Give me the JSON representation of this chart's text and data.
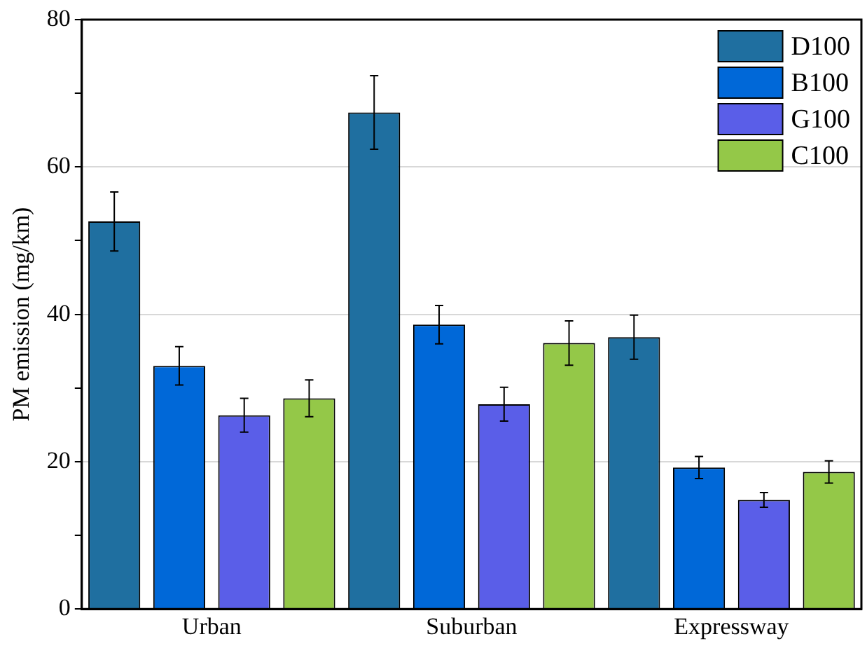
{
  "chart_data": {
    "type": "bar",
    "ylabel": "PM emission (mg/km)",
    "categories": [
      "Urban",
      "Suburban",
      "Expressway"
    ],
    "series": [
      {
        "name": "D100",
        "color": "#1f6fa0",
        "values": [
          52.6,
          67.4,
          36.9
        ],
        "errors": [
          4,
          5,
          3
        ]
      },
      {
        "name": "B100",
        "color": "#0068d8",
        "values": [
          33.0,
          38.6,
          19.2
        ],
        "errors": [
          2.6,
          2.6,
          1.5
        ]
      },
      {
        "name": "G100",
        "color": "#5a5ee8",
        "values": [
          26.3,
          27.8,
          14.8
        ],
        "errors": [
          2.3,
          2.3,
          1
        ]
      },
      {
        "name": "C100",
        "color": "#94c848",
        "values": [
          28.6,
          36.1,
          18.6
        ],
        "errors": [
          2.5,
          3,
          1.5
        ]
      }
    ],
    "ylim": [
      0,
      80
    ],
    "yticks": [
      0,
      {
        "value": 10,
        "label": null
      },
      20,
      {
        "value": 30,
        "label": null
      },
      40,
      {
        "value": 50,
        "label": null
      },
      60,
      {
        "value": 70,
        "label": null
      },
      80
    ],
    "grid": "y",
    "legend": "top right"
  }
}
